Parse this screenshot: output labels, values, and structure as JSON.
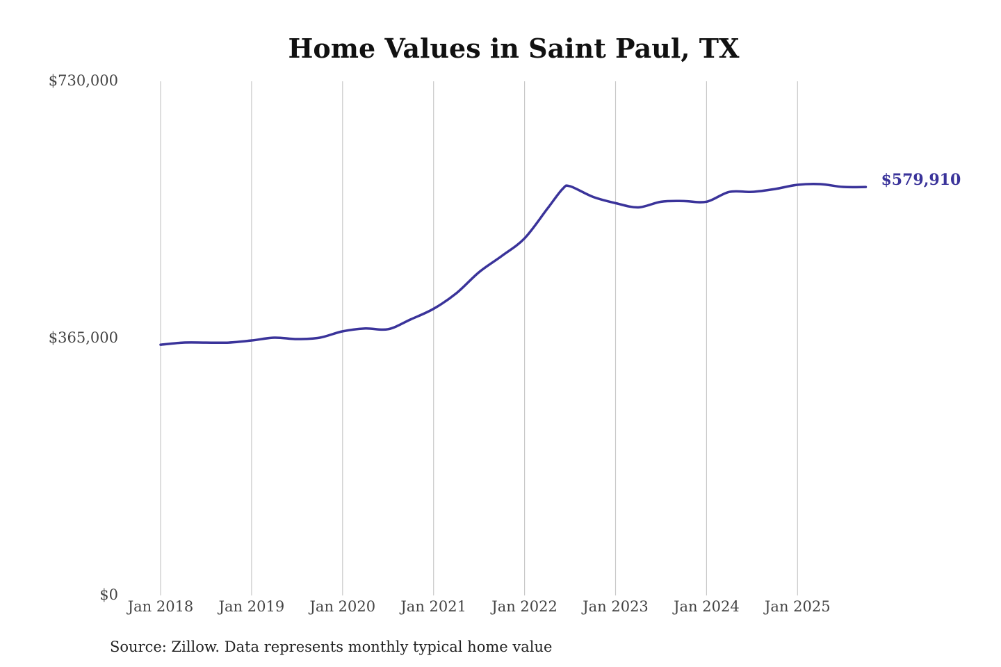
{
  "chart_data": {
    "type": "line",
    "title": "Home Values in Saint Paul, TX",
    "source": "Source: Zillow. Data represents monthly typical home value",
    "xlabel": "",
    "ylabel": "",
    "ylim": [
      0,
      730000
    ],
    "y_ticks": [
      0,
      365000,
      730000
    ],
    "y_tick_labels": [
      "$0",
      "$365,000",
      "$730,000"
    ],
    "x_ticks": [
      "2018-01",
      "2019-01",
      "2020-01",
      "2021-01",
      "2022-01",
      "2023-01",
      "2024-01",
      "2025-01"
    ],
    "x_tick_labels": [
      "Jan 2018",
      "Jan 2019",
      "Jan 2020",
      "Jan 2021",
      "Jan 2022",
      "Jan 2023",
      "Jan 2024",
      "Jan 2025"
    ],
    "grid": "vertical",
    "line_color": "#3a339a",
    "end_label": "$579,910",
    "series": [
      {
        "x": [
          "2018-01",
          "2018-04",
          "2018-07",
          "2018-10",
          "2019-01",
          "2019-04",
          "2019-07",
          "2019-10",
          "2020-01",
          "2020-04",
          "2020-07",
          "2020-10",
          "2021-01",
          "2021-04",
          "2021-07",
          "2021-10",
          "2022-01",
          "2022-04",
          "2022-06",
          "2022-07",
          "2022-10",
          "2023-01",
          "2023-04",
          "2023-07",
          "2023-10",
          "2024-01",
          "2024-04",
          "2024-07",
          "2024-10",
          "2025-01",
          "2025-04",
          "2025-07",
          "2025-10"
        ],
        "values": [
          356000,
          359000,
          359000,
          359000,
          362000,
          366000,
          364000,
          366000,
          375000,
          379000,
          378000,
          392000,
          407000,
          429000,
          459000,
          482000,
          507000,
          549000,
          577000,
          581000,
          566000,
          557000,
          551000,
          559000,
          560000,
          559000,
          573000,
          573000,
          577000,
          583000,
          584000,
          580000,
          579910
        ]
      }
    ]
  }
}
